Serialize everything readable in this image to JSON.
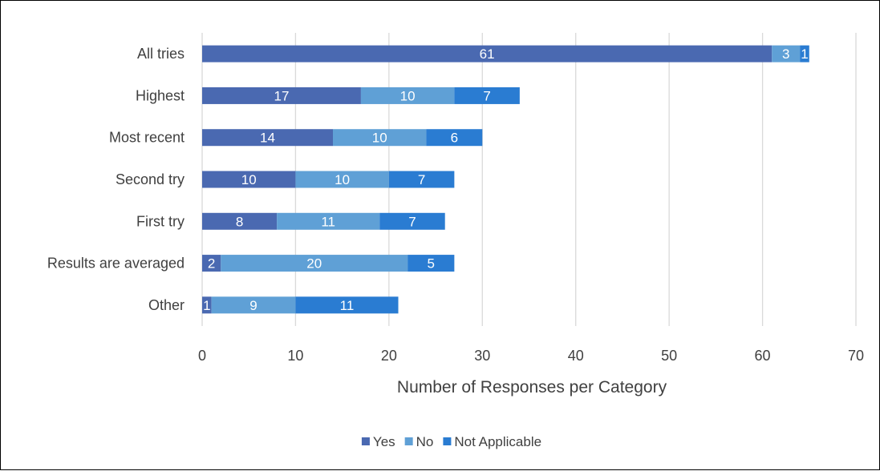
{
  "chart_data": {
    "type": "bar",
    "orientation": "horizontal",
    "stacked": true,
    "categories": [
      "All tries",
      "Highest",
      "Most recent",
      "Second try",
      "First try",
      "Results are averaged",
      "Other"
    ],
    "series": [
      {
        "name": "Yes",
        "values": [
          61,
          17,
          14,
          10,
          8,
          2,
          1
        ],
        "color": "#4a69b1"
      },
      {
        "name": "No",
        "values": [
          3,
          10,
          10,
          10,
          11,
          20,
          9
        ],
        "color": "#5fa0d6"
      },
      {
        "name": "Not Applicable",
        "values": [
          1,
          7,
          6,
          7,
          7,
          5,
          11
        ],
        "color": "#2a7cd2"
      }
    ],
    "title": "",
    "xlabel": "Number of Responses per Category",
    "ylabel": "",
    "xlim": [
      0,
      70
    ],
    "xticks": [
      "0",
      "10",
      "20",
      "30",
      "40",
      "50",
      "60",
      "70"
    ],
    "grid": "vertical",
    "legend": "bottom"
  }
}
